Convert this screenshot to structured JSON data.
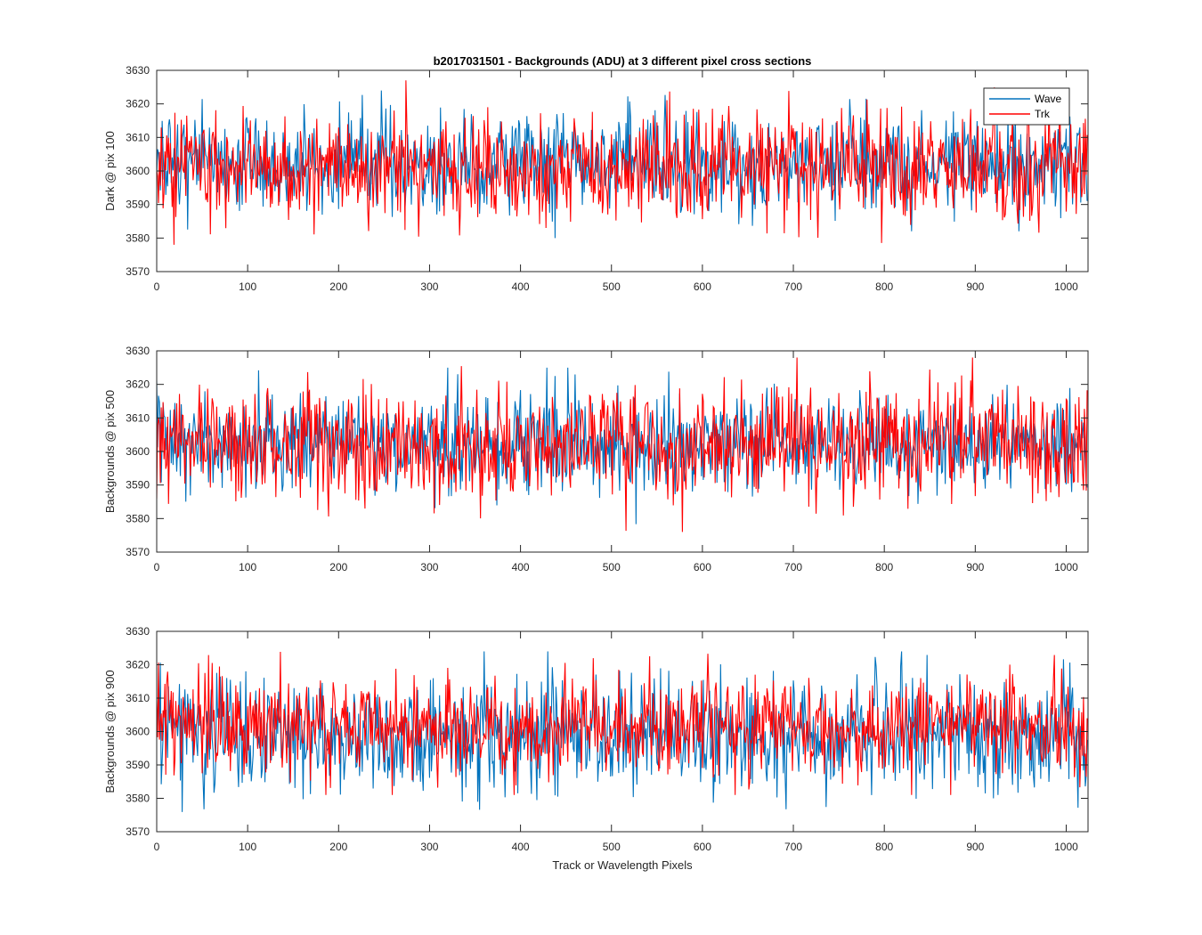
{
  "figure_title": "b2017031501 - Backgrounds (ADU) at 3 different pixel cross sections",
  "legend": {
    "placement": "top-right",
    "entries": [
      "Wave",
      "Trk"
    ]
  },
  "colors": {
    "Wave": "#0072BD",
    "Trk": "#FF0000",
    "axis": "#262626"
  },
  "chart_data": [
    {
      "type": "line",
      "ylabel": "Dark @ pix 100",
      "xlabel": "",
      "xlim": [
        0,
        1024
      ],
      "ylim": [
        3570,
        3630
      ],
      "xticks": [
        0,
        100,
        200,
        300,
        400,
        500,
        600,
        700,
        800,
        900,
        1000
      ],
      "yticks": [
        3570,
        3580,
        3590,
        3600,
        3610,
        3620,
        3630
      ],
      "grid": false,
      "series": [
        {
          "name": "Wave",
          "mean": 3602,
          "approx_range": [
            3580,
            3624
          ],
          "n_points": 1024,
          "note": "noisy trace"
        },
        {
          "name": "Trk",
          "mean": 3601,
          "approx_range": [
            3578,
            3627
          ],
          "n_points": 1024,
          "note": "noisy trace"
        }
      ]
    },
    {
      "type": "line",
      "ylabel": "Backgrounds @ pix 500",
      "xlabel": "",
      "xlim": [
        0,
        1024
      ],
      "ylim": [
        3570,
        3630
      ],
      "xticks": [
        0,
        100,
        200,
        300,
        400,
        500,
        600,
        700,
        800,
        900,
        1000
      ],
      "yticks": [
        3570,
        3580,
        3590,
        3600,
        3610,
        3620,
        3630
      ],
      "grid": false,
      "series": [
        {
          "name": "Wave",
          "mean": 3602,
          "approx_range": [
            3577,
            3625
          ],
          "n_points": 1024
        },
        {
          "name": "Trk",
          "mean": 3602,
          "approx_range": [
            3576,
            3628
          ],
          "n_points": 1024
        }
      ]
    },
    {
      "type": "line",
      "ylabel": "Backgrounds @ pix 900",
      "xlabel": "Track or Wavelength Pixels",
      "xlim": [
        0,
        1024
      ],
      "ylim": [
        3570,
        3630
      ],
      "xticks": [
        0,
        100,
        200,
        300,
        400,
        500,
        600,
        700,
        800,
        900,
        1000
      ],
      "yticks": [
        3570,
        3580,
        3590,
        3600,
        3610,
        3620,
        3630
      ],
      "grid": false,
      "series": [
        {
          "name": "Wave",
          "mean": 3599,
          "approx_range": [
            3570,
            3624
          ],
          "n_points": 1024
        },
        {
          "name": "Trk",
          "mean": 3602,
          "approx_range": [
            3581,
            3628
          ],
          "n_points": 1024
        }
      ]
    }
  ]
}
